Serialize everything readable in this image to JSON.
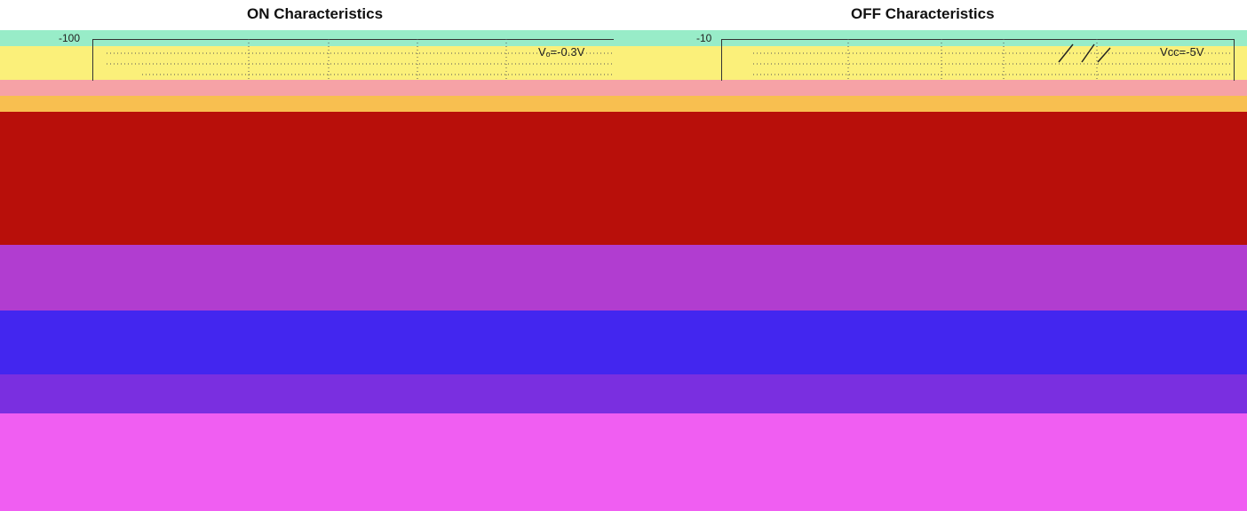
{
  "chart_data": [
    {
      "type": "line",
      "title": "ON Characteristics",
      "ytick_labels": [
        "-100"
      ],
      "annotations": [
        "Vₒ=-0.3V"
      ]
    },
    {
      "type": "line",
      "title": "OFF Characteristics",
      "ytick_labels": [
        "-10"
      ],
      "annotations": [
        "Vᴄᴄ=-5V"
      ]
    }
  ],
  "colors": {
    "teal": "#98ecc8",
    "yellow": "#fbf07a",
    "pink": "#f6a2a6",
    "orange": "#f8bf50",
    "darkred": "#b80f0a",
    "magenta": "#b13dd0",
    "blue": "#4326ef",
    "violet": "#7a2fe0",
    "pink_magenta": "#f05ef2"
  }
}
